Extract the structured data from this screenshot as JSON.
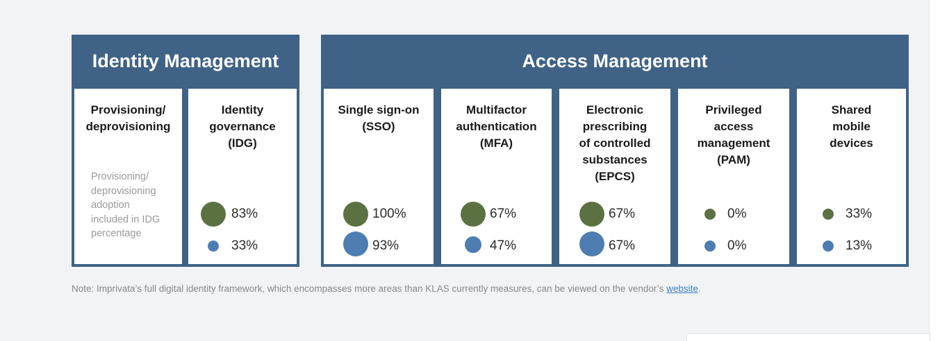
{
  "chart_data": {
    "type": "table",
    "groups": [
      {
        "title": "Identity Management",
        "columns": [
          {
            "label": "Provisioning/\ndeprovisioning",
            "note": "Provisioning/\ndeprovisioning\nadoption\nincluded in IDG\npercentage"
          },
          {
            "label": "Identity\ngovernance\n(IDG)",
            "values": [
              "83%",
              "33%"
            ]
          }
        ]
      },
      {
        "title": "Access Management",
        "columns": [
          {
            "label": "Single sign-on\n(SSO)",
            "values": [
              "100%",
              "93%"
            ]
          },
          {
            "label": "Multifactor\nauthentication\n(MFA)",
            "values": [
              "67%",
              "47%"
            ]
          },
          {
            "label": "Electronic\nprescribing\nof controlled\nsubstances\n(EPCS)",
            "values": [
              "67%",
              "67%"
            ]
          },
          {
            "label": "Privileged\naccess\nmanagement\n(PAM)",
            "values": [
              "0%",
              "0%"
            ]
          },
          {
            "label": "Shared\nmobile\ndevices",
            "values": [
              "33%",
              "13%"
            ]
          }
        ]
      }
    ],
    "series_colors": {
      "green": "#5b7142",
      "blue": "#4e7db1"
    }
  },
  "footnote": {
    "text": "Note: Imprivata’s full digital identity framework, which encompasses more areas than KLAS currently measures, can be viewed on the vendor’s ",
    "link": "website",
    "end": "."
  },
  "colors": {
    "header": "#3f6286",
    "background": "#f2f3f5"
  }
}
